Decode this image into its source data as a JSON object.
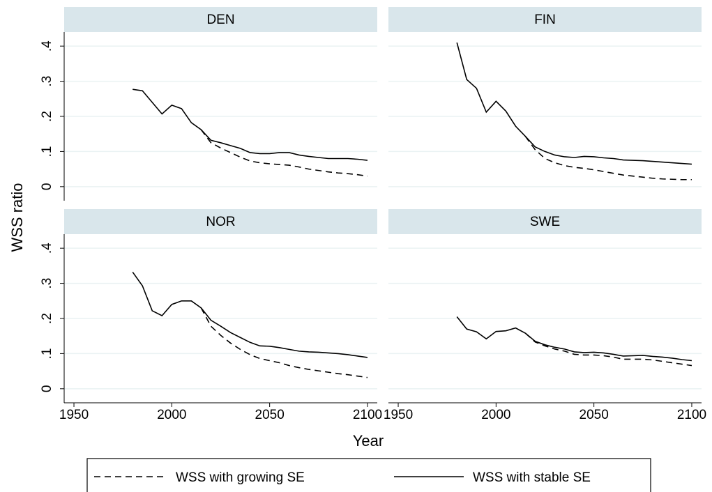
{
  "y_label": "WSS ratio",
  "x_label": "Year",
  "chart_data": [
    {
      "type": "line",
      "title": "DEN",
      "xlim": [
        1945,
        2105
      ],
      "ylim": [
        -0.04,
        0.44
      ],
      "grid": true,
      "xticks": [
        1950,
        2000,
        2050,
        2100
      ],
      "yticks": [
        0,
        {
          "value": 0.1,
          "label": ".1"
        },
        {
          "value": 0.2,
          "label": ".2"
        },
        {
          "value": 0.3,
          "label": ".3"
        },
        {
          "value": 0.4,
          "label": ".4"
        }
      ],
      "x": [
        1980,
        1985,
        1990,
        1995,
        2000,
        2005,
        2010,
        2015,
        2020,
        2025,
        2030,
        2035,
        2040,
        2045,
        2050,
        2055,
        2060,
        2065,
        2070,
        2075,
        2080,
        2085,
        2090,
        2095,
        2100
      ],
      "series": [
        {
          "name": "WSS with growing SE",
          "color": "#000000",
          "style": "dashed",
          "values": [
            null,
            null,
            null,
            null,
            null,
            null,
            null,
            0.162,
            0.125,
            0.11,
            0.097,
            0.084,
            0.073,
            0.068,
            0.065,
            0.063,
            0.061,
            0.056,
            0.05,
            0.046,
            0.042,
            0.039,
            0.037,
            0.034,
            0.03
          ]
        },
        {
          "name": "WSS with stable SE",
          "color": "#000000",
          "style": "solid",
          "values": [
            0.277,
            0.273,
            0.24,
            0.207,
            0.232,
            0.222,
            0.182,
            0.162,
            0.132,
            0.125,
            0.117,
            0.109,
            0.097,
            0.094,
            0.094,
            0.097,
            0.097,
            0.09,
            0.086,
            0.083,
            0.08,
            0.08,
            0.08,
            0.078,
            0.075
          ]
        }
      ]
    },
    {
      "type": "line",
      "title": "FIN",
      "xlim": [
        1945,
        2105
      ],
      "ylim": [
        -0.04,
        0.44
      ],
      "grid": true,
      "xticks": [
        1950,
        2000,
        2050,
        2100
      ],
      "yticks": [
        0,
        {
          "value": 0.1,
          "label": ".1"
        },
        {
          "value": 0.2,
          "label": ".2"
        },
        {
          "value": 0.3,
          "label": ".3"
        },
        {
          "value": 0.4,
          "label": ".4"
        }
      ],
      "x": [
        1980,
        1985,
        1990,
        1995,
        2000,
        2005,
        2010,
        2015,
        2020,
        2025,
        2030,
        2035,
        2040,
        2045,
        2050,
        2055,
        2060,
        2065,
        2070,
        2075,
        2080,
        2085,
        2090,
        2095,
        2100
      ],
      "series": [
        {
          "name": "WSS with growing SE",
          "color": "#000000",
          "style": "dashed",
          "values": [
            null,
            null,
            null,
            null,
            null,
            null,
            null,
            0.143,
            0.105,
            0.08,
            0.068,
            0.06,
            0.055,
            0.052,
            0.048,
            0.043,
            0.038,
            0.033,
            0.03,
            0.027,
            0.024,
            0.022,
            0.021,
            0.02,
            0.02
          ]
        },
        {
          "name": "WSS with stable SE",
          "color": "#000000",
          "style": "solid",
          "values": [
            0.41,
            0.305,
            0.28,
            0.212,
            0.243,
            0.215,
            0.172,
            0.143,
            0.113,
            0.1,
            0.09,
            0.085,
            0.083,
            0.086,
            0.085,
            0.082,
            0.08,
            0.076,
            0.075,
            0.074,
            0.072,
            0.07,
            0.068,
            0.066,
            0.064
          ]
        }
      ]
    },
    {
      "type": "line",
      "title": "NOR",
      "xlim": [
        1945,
        2105
      ],
      "ylim": [
        -0.04,
        0.44
      ],
      "grid": true,
      "xticks": [
        1950,
        2000,
        2050,
        2100
      ],
      "yticks": [
        0,
        {
          "value": 0.1,
          "label": ".1"
        },
        {
          "value": 0.2,
          "label": ".2"
        },
        {
          "value": 0.3,
          "label": ".3"
        },
        {
          "value": 0.4,
          "label": ".4"
        }
      ],
      "x": [
        1980,
        1985,
        1990,
        1995,
        2000,
        2005,
        2010,
        2015,
        2020,
        2025,
        2030,
        2035,
        2040,
        2045,
        2050,
        2055,
        2060,
        2065,
        2070,
        2075,
        2080,
        2085,
        2090,
        2095,
        2100
      ],
      "series": [
        {
          "name": "WSS with growing SE",
          "color": "#000000",
          "style": "dashed",
          "values": [
            null,
            null,
            null,
            null,
            null,
            null,
            null,
            0.23,
            0.178,
            0.152,
            0.13,
            0.112,
            0.097,
            0.086,
            0.08,
            0.074,
            0.066,
            0.06,
            0.055,
            0.051,
            0.047,
            0.043,
            0.04,
            0.036,
            0.032
          ]
        },
        {
          "name": "WSS with stable SE",
          "color": "#000000",
          "style": "solid",
          "values": [
            0.332,
            0.293,
            0.222,
            0.208,
            0.24,
            0.25,
            0.25,
            0.23,
            0.195,
            0.178,
            0.16,
            0.146,
            0.132,
            0.122,
            0.121,
            0.117,
            0.112,
            0.107,
            0.105,
            0.104,
            0.102,
            0.1,
            0.097,
            0.093,
            0.089
          ]
        }
      ]
    },
    {
      "type": "line",
      "title": "SWE",
      "xlim": [
        1945,
        2105
      ],
      "ylim": [
        -0.04,
        0.44
      ],
      "grid": true,
      "xticks": [
        1950,
        2000,
        2050,
        2100
      ],
      "yticks": [
        0,
        {
          "value": 0.1,
          "label": ".1"
        },
        {
          "value": 0.2,
          "label": ".2"
        },
        {
          "value": 0.3,
          "label": ".3"
        },
        {
          "value": 0.4,
          "label": ".4"
        }
      ],
      "x": [
        1980,
        1985,
        1990,
        1995,
        2000,
        2005,
        2010,
        2015,
        2020,
        2025,
        2030,
        2035,
        2040,
        2045,
        2050,
        2055,
        2060,
        2065,
        2070,
        2075,
        2080,
        2085,
        2090,
        2095,
        2100
      ],
      "series": [
        {
          "name": "WSS with growing SE",
          "color": "#000000",
          "style": "dashed",
          "values": [
            null,
            null,
            null,
            null,
            null,
            null,
            null,
            0.158,
            0.133,
            0.122,
            0.113,
            0.107,
            0.098,
            0.096,
            0.096,
            0.094,
            0.09,
            0.084,
            0.084,
            0.084,
            0.082,
            0.078,
            0.074,
            0.07,
            0.066
          ]
        },
        {
          "name": "WSS with stable SE",
          "color": "#000000",
          "style": "solid",
          "values": [
            0.205,
            0.17,
            0.162,
            0.142,
            0.163,
            0.165,
            0.173,
            0.158,
            0.135,
            0.125,
            0.118,
            0.113,
            0.105,
            0.103,
            0.104,
            0.102,
            0.098,
            0.093,
            0.094,
            0.095,
            0.092,
            0.09,
            0.087,
            0.083,
            0.08
          ]
        }
      ]
    }
  ]
}
